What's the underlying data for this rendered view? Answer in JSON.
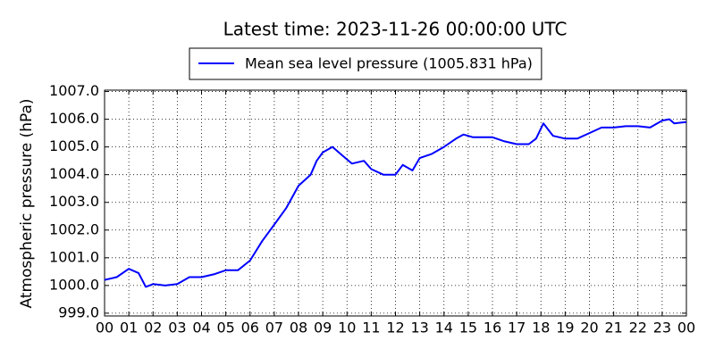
{
  "chart_data": {
    "type": "line",
    "title": "Latest time: 2023-11-26 00:00:00 UTC",
    "y_label": "Atmospheric pressure (hPa)",
    "x": [
      0,
      0.5,
      1,
      1.4,
      1.7,
      2,
      2.5,
      3,
      3.5,
      4,
      4.5,
      5,
      5.5,
      6,
      6.5,
      7,
      7.5,
      8,
      8.5,
      8.75,
      9,
      9.4,
      9.8,
      10.2,
      10.7,
      11,
      11.5,
      12,
      12.3,
      12.7,
      13,
      13.5,
      14,
      14.5,
      14.8,
      15.2,
      16,
      16.5,
      17,
      17.5,
      17.8,
      18.1,
      18.5,
      19,
      19.5,
      20,
      20.5,
      21,
      21.5,
      22,
      22.5,
      23,
      23.3,
      23.5,
      24
    ],
    "series": [
      {
        "name": "Mean sea level pressure (1005.831 hPa)",
        "color": "#0000ff",
        "values": [
          1000.2,
          1000.3,
          1000.6,
          1000.45,
          999.95,
          1000.05,
          1000.0,
          1000.05,
          1000.3,
          1000.3,
          1000.4,
          1000.55,
          1000.55,
          1000.9,
          1001.6,
          1002.2,
          1002.8,
          1003.6,
          1004.0,
          1004.5,
          1004.8,
          1005.0,
          1004.7,
          1004.4,
          1004.5,
          1004.2,
          1004.0,
          1004.0,
          1004.35,
          1004.15,
          1004.6,
          1004.75,
          1005.0,
          1005.3,
          1005.45,
          1005.35,
          1005.35,
          1005.2,
          1005.1,
          1005.1,
          1005.3,
          1005.85,
          1005.4,
          1005.3,
          1005.3,
          1005.5,
          1005.7,
          1005.7,
          1005.75,
          1005.75,
          1005.7,
          1005.95,
          1006.0,
          1005.85,
          1005.9
        ]
      }
    ],
    "xlim": [
      0,
      24
    ],
    "xticks": [
      {
        "value": 0,
        "label": "00"
      },
      {
        "value": 1,
        "label": "01"
      },
      {
        "value": 2,
        "label": "02"
      },
      {
        "value": 3,
        "label": "03"
      },
      {
        "value": 4,
        "label": "04"
      },
      {
        "value": 5,
        "label": "05"
      },
      {
        "value": 6,
        "label": "06"
      },
      {
        "value": 7,
        "label": "07"
      },
      {
        "value": 8,
        "label": "08"
      },
      {
        "value": 9,
        "label": "09"
      },
      {
        "value": 10,
        "label": "10"
      },
      {
        "value": 11,
        "label": "11"
      },
      {
        "value": 12,
        "label": "12"
      },
      {
        "value": 13,
        "label": "13"
      },
      {
        "value": 14,
        "label": "14"
      },
      {
        "value": 15,
        "label": "15"
      },
      {
        "value": 16,
        "label": "16"
      },
      {
        "value": 17,
        "label": "17"
      },
      {
        "value": 18,
        "label": "18"
      },
      {
        "value": 19,
        "label": "19"
      },
      {
        "value": 20,
        "label": "20"
      },
      {
        "value": 21,
        "label": "21"
      },
      {
        "value": 22,
        "label": "22"
      },
      {
        "value": 23,
        "label": "23"
      },
      {
        "value": 24,
        "label": "00"
      }
    ],
    "ylim": [
      998.9,
      1007.05
    ],
    "yticks": [
      {
        "value": 999,
        "label": "999.0"
      },
      {
        "value": 1000,
        "label": "1000.0"
      },
      {
        "value": 1001,
        "label": "1001.0"
      },
      {
        "value": 1002,
        "label": "1002.0"
      },
      {
        "value": 1003,
        "label": "1003.0"
      },
      {
        "value": 1004,
        "label": "1004.0"
      },
      {
        "value": 1005,
        "label": "1005.0"
      },
      {
        "value": 1006,
        "label": "1006.0"
      },
      {
        "value": 1007,
        "label": "1007.0"
      }
    ],
    "grid": true,
    "legend": "top"
  }
}
